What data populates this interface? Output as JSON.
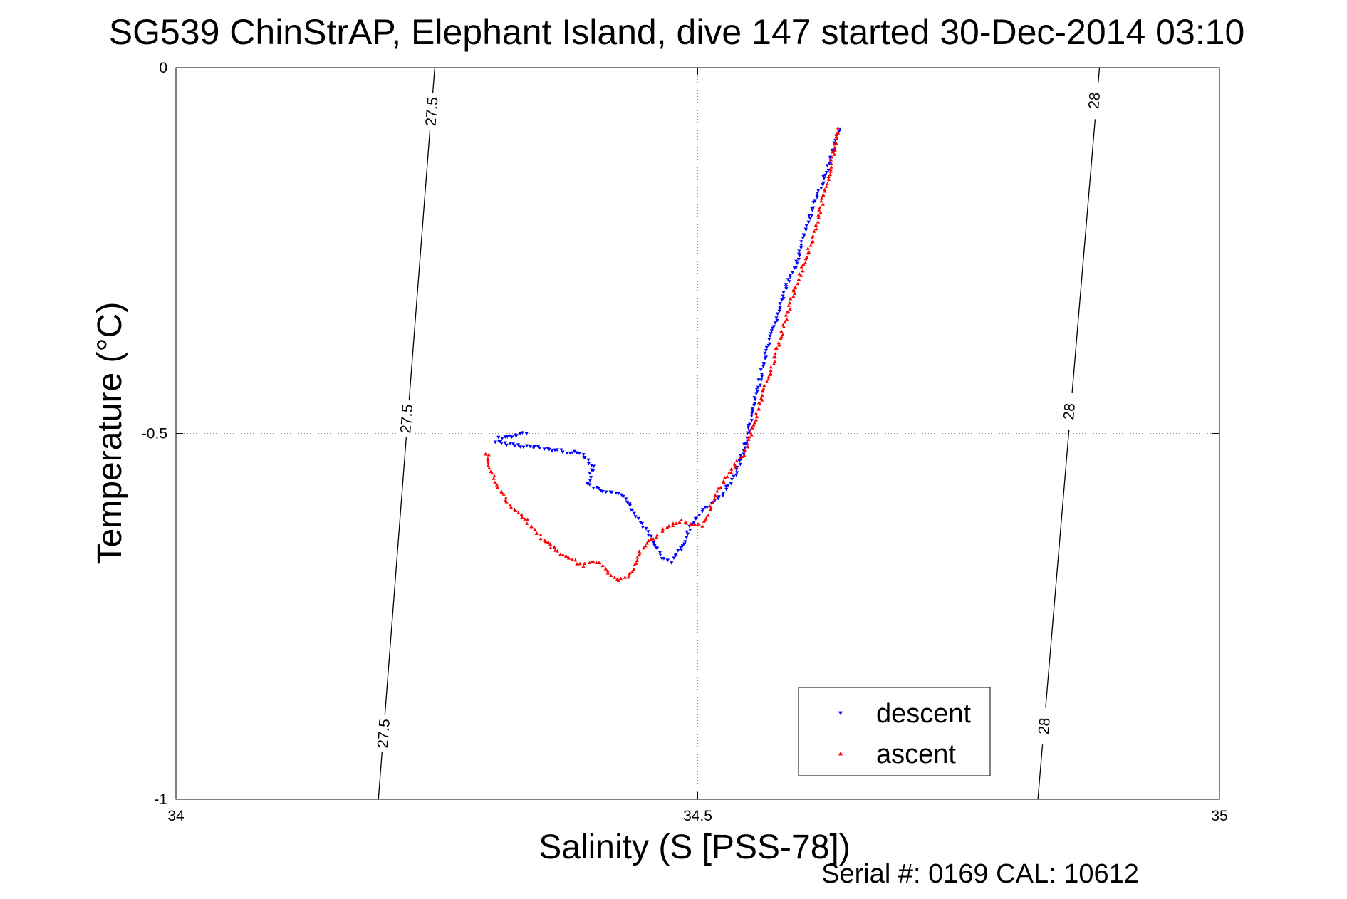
{
  "chart_data": {
    "type": "scatter",
    "title": "SG539 ChinStrAP, Elephant Island, dive 147 started 30-Dec-2014 03:10",
    "xlabel": "Salinity (S [PSS-78])",
    "ylabel": "Temperature (°C)",
    "footer": "Serial #: 0169 CAL: 10612",
    "xlim": [
      34,
      35
    ],
    "ylim": [
      -1,
      0
    ],
    "xticks": [
      34,
      34.5,
      35
    ],
    "xtick_labels": [
      "34",
      "34.5",
      "35"
    ],
    "yticks": [
      0,
      -0.5,
      -1
    ],
    "ytick_labels": [
      "0",
      "-0.5",
      "-1"
    ],
    "grid": true,
    "legend_position": "bottom-right",
    "isopycnals": [
      {
        "label": "27.5",
        "bottom": [
          34.194,
          -1
        ],
        "top": [
          34.248,
          0
        ],
        "labels_at": [
          [
            34.199,
            -0.91
          ],
          [
            34.221,
            -0.48
          ],
          [
            34.245,
            -0.06
          ]
        ]
      },
      {
        "label": "28",
        "bottom": [
          34.826,
          -1
        ],
        "top": [
          34.885,
          0
        ],
        "labels_at": [
          [
            34.832,
            -0.9
          ],
          [
            34.856,
            -0.47
          ],
          [
            34.88,
            -0.045
          ]
        ]
      }
    ],
    "series": [
      {
        "name": "descent",
        "color": "#0000ff",
        "marker": "triangle-down",
        "path": [
          [
            34.336,
            -0.5
          ],
          [
            34.33,
            -0.5
          ],
          [
            34.32,
            -0.505
          ],
          [
            34.31,
            -0.507
          ],
          [
            34.307,
            -0.512
          ],
          [
            34.39,
            -0.528
          ],
          [
            34.4,
            -0.545
          ],
          [
            34.395,
            -0.57
          ],
          [
            34.41,
            -0.58
          ],
          [
            34.43,
            -0.585
          ],
          [
            34.44,
            -0.61
          ],
          [
            34.45,
            -0.63
          ],
          [
            34.46,
            -0.655
          ],
          [
            34.465,
            -0.67
          ],
          [
            34.475,
            -0.675
          ],
          [
            34.48,
            -0.665
          ],
          [
            34.488,
            -0.65
          ],
          [
            34.49,
            -0.635
          ],
          [
            34.5,
            -0.615
          ],
          [
            34.505,
            -0.605
          ],
          [
            34.515,
            -0.595
          ],
          [
            34.525,
            -0.58
          ],
          [
            34.535,
            -0.56
          ],
          [
            34.545,
            -0.52
          ],
          [
            34.555,
            -0.455
          ],
          [
            34.565,
            -0.395
          ],
          [
            34.575,
            -0.345
          ],
          [
            34.585,
            -0.3
          ],
          [
            34.595,
            -0.265
          ],
          [
            34.605,
            -0.215
          ],
          [
            34.615,
            -0.175
          ],
          [
            34.625,
            -0.135
          ],
          [
            34.63,
            -0.11
          ],
          [
            34.633,
            -0.09
          ],
          [
            34.637,
            -0.08
          ]
        ]
      },
      {
        "name": "ascent",
        "color": "#ff0000",
        "marker": "triangle-up",
        "path": [
          [
            34.298,
            -0.527
          ],
          [
            34.3,
            -0.545
          ],
          [
            34.308,
            -0.57
          ],
          [
            34.318,
            -0.595
          ],
          [
            34.33,
            -0.61
          ],
          [
            34.345,
            -0.635
          ],
          [
            34.36,
            -0.655
          ],
          [
            34.375,
            -0.67
          ],
          [
            34.39,
            -0.68
          ],
          [
            34.405,
            -0.675
          ],
          [
            34.415,
            -0.69
          ],
          [
            34.425,
            -0.7
          ],
          [
            34.435,
            -0.695
          ],
          [
            34.445,
            -0.66
          ],
          [
            34.455,
            -0.645
          ],
          [
            34.465,
            -0.635
          ],
          [
            34.475,
            -0.625
          ],
          [
            34.485,
            -0.62
          ],
          [
            34.495,
            -0.625
          ],
          [
            34.505,
            -0.625
          ],
          [
            34.51,
            -0.61
          ],
          [
            34.515,
            -0.59
          ],
          [
            34.525,
            -0.565
          ],
          [
            34.535,
            -0.545
          ],
          [
            34.545,
            -0.525
          ],
          [
            34.55,
            -0.505
          ],
          [
            34.555,
            -0.48
          ],
          [
            34.565,
            -0.435
          ],
          [
            34.575,
            -0.39
          ],
          [
            34.585,
            -0.34
          ],
          [
            34.595,
            -0.295
          ],
          [
            34.605,
            -0.255
          ],
          [
            34.615,
            -0.21
          ],
          [
            34.62,
            -0.18
          ],
          [
            34.625,
            -0.15
          ],
          [
            34.63,
            -0.12
          ],
          [
            34.633,
            -0.095
          ],
          [
            34.635,
            -0.08
          ]
        ]
      }
    ]
  }
}
